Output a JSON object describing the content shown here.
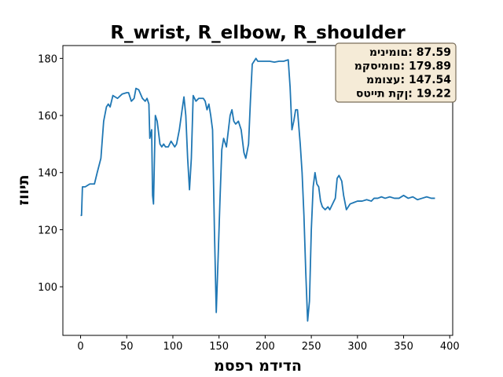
{
  "chart_data": {
    "type": "line",
    "title": "R_wrist, R_elbow, R_shoulder",
    "xlabel": "מספר מדידה",
    "ylabel": "זווית",
    "annotation": [
      "מינימום: 87.59",
      "מקסימום: 179.89",
      "ממוצע: 147.54",
      "סטיית תקן: 19.22"
    ],
    "x": [
      0,
      1,
      2,
      5,
      10,
      15,
      18,
      22,
      25,
      28,
      30,
      32,
      35,
      40,
      45,
      50,
      52,
      55,
      58,
      60,
      63,
      67,
      70,
      72,
      74,
      75,
      77,
      78,
      79,
      81,
      83,
      86,
      88,
      90,
      92,
      95,
      98,
      102,
      104,
      107,
      110,
      112,
      114,
      116,
      118,
      120,
      122,
      125,
      128,
      133,
      135,
      137,
      139,
      141,
      143,
      145,
      147,
      149,
      151,
      153,
      155,
      158,
      162,
      164,
      166,
      168,
      171,
      174,
      177,
      179,
      182,
      184,
      186,
      188,
      190,
      192,
      195,
      200,
      205,
      210,
      215,
      220,
      225,
      227,
      229,
      231,
      233,
      235,
      238,
      240,
      242,
      244,
      246,
      248,
      250,
      252,
      254,
      256,
      258,
      260,
      262,
      265,
      268,
      270,
      273,
      276,
      278,
      280,
      283,
      285,
      288,
      290,
      292,
      296,
      300,
      305,
      310,
      315,
      318,
      322,
      326,
      330,
      335,
      340,
      345,
      350,
      355,
      360,
      365,
      370,
      375,
      380,
      384
    ],
    "series": [
      {
        "name": "R_wrist, R_elbow, R_shoulder",
        "color": "#1f77b4",
        "values": [
          125,
          125,
          135,
          135,
          136,
          136,
          140,
          145,
          158,
          163,
          164,
          163,
          167,
          166,
          167.5,
          168,
          168,
          165,
          166,
          169.5,
          169,
          166,
          165,
          166,
          164,
          152,
          155,
          132,
          129,
          160,
          158,
          150,
          149,
          150,
          149,
          149,
          151,
          149,
          150,
          155,
          162,
          166.5,
          160,
          145,
          134,
          145,
          167,
          165,
          166,
          166,
          165,
          162,
          164,
          160,
          155,
          120,
          91,
          110,
          130,
          148,
          152,
          149,
          160,
          162,
          158,
          157,
          158,
          155,
          147,
          145,
          150,
          165,
          178,
          179,
          180,
          179,
          179,
          179,
          179,
          178.7,
          179,
          179,
          179.5,
          170,
          155,
          158,
          162,
          162,
          150,
          140,
          125,
          105,
          88,
          95,
          120,
          135,
          140,
          136,
          135,
          130,
          128,
          127,
          128,
          127,
          129,
          131,
          138,
          139,
          137,
          132,
          127,
          128,
          129,
          129.5,
          130,
          130,
          130.5,
          130,
          131,
          131,
          131.5,
          131,
          131.5,
          131,
          131,
          132,
          131,
          131.5,
          130.5,
          131,
          131.5,
          131,
          131
        ]
      }
    ],
    "xlim": [
      -19.2,
      403.2
    ],
    "ylim": [
      82.97,
      184.5
    ],
    "xticks": [
      0,
      50,
      100,
      150,
      200,
      250,
      300,
      350,
      400
    ],
    "yticks": [
      100,
      120,
      140,
      160,
      180
    ],
    "grid": false
  }
}
